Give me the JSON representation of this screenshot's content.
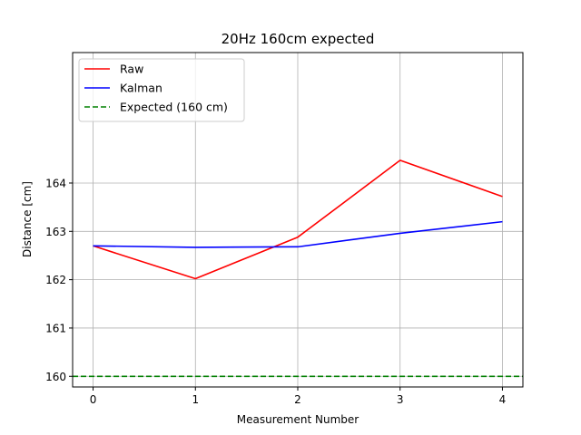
{
  "chart_data": {
    "type": "line",
    "title": "20Hz 160cm expected",
    "xlabel": "Measurement Number",
    "ylabel": "Distance [cm]",
    "x": [
      0,
      1,
      2,
      3,
      4
    ],
    "xlim": [
      -0.2,
      4.2
    ],
    "ylim": [
      159.78,
      166.7
    ],
    "xticks": [
      0,
      1,
      2,
      3,
      4
    ],
    "yticks": [
      160,
      161,
      162,
      163,
      164
    ],
    "grid": true,
    "legend_position": "top-left",
    "series": [
      {
        "name": "Raw",
        "color": "#ff0000",
        "style": "solid",
        "values": [
          162.7,
          162.02,
          162.88,
          164.47,
          163.72
        ]
      },
      {
        "name": "Kalman",
        "color": "#0000ff",
        "style": "solid",
        "values": [
          162.7,
          162.67,
          162.68,
          162.96,
          163.2
        ]
      },
      {
        "name": "Expected (160 cm)",
        "color": "#008000",
        "style": "dashed",
        "values": [
          160,
          160,
          160,
          160,
          160
        ]
      }
    ]
  }
}
